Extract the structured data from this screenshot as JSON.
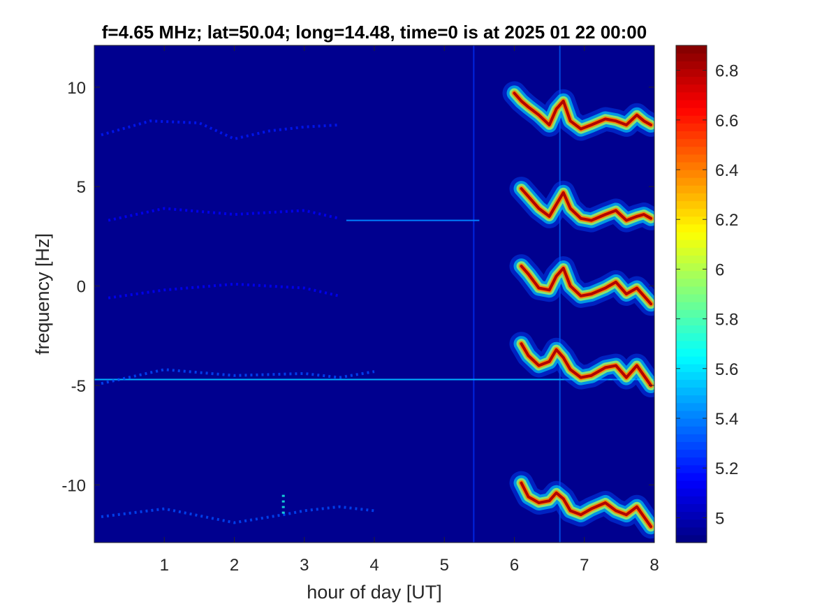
{
  "chart_data": {
    "type": "heatmap",
    "title": "f=4.65 MHz;  lat=50.04; long=14.48, time=0 is at 2025 01 22 00:00",
    "xlabel": "hour of day [UT]",
    "ylabel": "frequency [Hz]",
    "xlim": [
      0,
      8
    ],
    "ylim": [
      -12.9,
      12.1
    ],
    "x_ticks": [
      1,
      2,
      3,
      4,
      5,
      6,
      7,
      8
    ],
    "y_ticks": [
      -10,
      -5,
      0,
      5,
      10
    ],
    "colormap": "jet",
    "color_range": [
      4.9,
      6.9
    ],
    "colorbar_ticks": [
      5,
      5.2,
      5.4,
      5.6,
      5.8,
      6,
      6.2,
      6.4,
      6.6,
      6.8
    ],
    "background_value": 4.95,
    "traces": [
      {
        "x": [
          6.0,
          6.1,
          6.2,
          6.35,
          6.5,
          6.6,
          6.7,
          6.8,
          6.95,
          7.1,
          7.3,
          7.45,
          7.6,
          7.75,
          7.85,
          7.95
        ],
        "y": [
          9.7,
          9.3,
          9.0,
          8.6,
          8.1,
          8.9,
          9.3,
          8.3,
          7.9,
          8.1,
          8.4,
          8.3,
          8.1,
          8.6,
          8.3,
          8.1
        ],
        "peak": 6.8
      },
      {
        "x": [
          6.1,
          6.2,
          6.35,
          6.5,
          6.6,
          6.7,
          6.8,
          6.95,
          7.1,
          7.3,
          7.45,
          7.6,
          7.75,
          7.85,
          7.95
        ],
        "y": [
          4.9,
          4.5,
          3.9,
          3.5,
          4.1,
          4.7,
          3.9,
          3.4,
          3.3,
          3.6,
          3.8,
          3.3,
          3.5,
          3.6,
          3.4
        ],
        "peak": 6.9
      },
      {
        "x": [
          6.1,
          6.2,
          6.35,
          6.5,
          6.6,
          6.7,
          6.8,
          6.95,
          7.1,
          7.3,
          7.45,
          7.6,
          7.75,
          7.85,
          7.95
        ],
        "y": [
          1.0,
          0.6,
          -0.1,
          -0.2,
          0.5,
          0.9,
          0.0,
          -0.5,
          -0.4,
          -0.1,
          0.2,
          -0.4,
          -0.1,
          -0.5,
          -0.9
        ],
        "peak": 6.9
      },
      {
        "x": [
          6.1,
          6.2,
          6.35,
          6.5,
          6.6,
          6.7,
          6.8,
          6.95,
          7.1,
          7.3,
          7.45,
          7.6,
          7.75,
          7.85,
          7.95
        ],
        "y": [
          -2.9,
          -3.5,
          -4.0,
          -3.8,
          -3.2,
          -3.6,
          -4.2,
          -4.6,
          -4.5,
          -4.1,
          -4.0,
          -4.6,
          -4.0,
          -4.5,
          -5.0
        ],
        "peak": 6.9
      },
      {
        "x": [
          6.1,
          6.2,
          6.35,
          6.5,
          6.6,
          6.7,
          6.8,
          6.95,
          7.1,
          7.3,
          7.45,
          7.6,
          7.75,
          7.85,
          7.95
        ],
        "y": [
          -9.9,
          -10.6,
          -10.9,
          -10.8,
          -10.4,
          -10.7,
          -11.3,
          -11.5,
          -11.2,
          -10.9,
          -11.3,
          -11.5,
          -11.1,
          -11.6,
          -12.1
        ],
        "peak": 6.9
      }
    ],
    "faint_features": [
      {
        "x": [
          0.1,
          0.8,
          1.5,
          2.0,
          2.5,
          3.0,
          3.5
        ],
        "y": [
          7.6,
          8.3,
          8.2,
          7.4,
          7.8,
          8.0,
          8.1
        ],
        "value": 5.2
      },
      {
        "x": [
          0.2,
          1.0,
          2.0,
          3.0,
          3.5
        ],
        "y": [
          3.3,
          3.9,
          3.6,
          3.8,
          3.4
        ],
        "value": 5.15
      },
      {
        "x": [
          0.2,
          1.0,
          2.0,
          3.0,
          3.5
        ],
        "y": [
          -0.6,
          -0.2,
          0.1,
          -0.1,
          -0.5
        ],
        "value": 5.15
      },
      {
        "x": [
          0.1,
          1.0,
          2.0,
          3.0,
          3.5,
          4.0
        ],
        "y": [
          -4.9,
          -4.2,
          -4.5,
          -4.4,
          -4.6,
          -4.3
        ],
        "value": 5.3
      },
      {
        "x": [
          0.1,
          1.0,
          2.0,
          2.7,
          3.0,
          3.5,
          4.0
        ],
        "y": [
          -11.6,
          -11.2,
          -11.9,
          -11.5,
          -11.3,
          -11.1,
          -11.3
        ],
        "value": 5.3
      },
      {
        "x": [
          2.7,
          2.7,
          2.7,
          2.7
        ],
        "y": [
          -10.5,
          -10.9,
          -11.2,
          -11.5
        ],
        "value": 5.7
      }
    ],
    "horizontal_lines": [
      {
        "y": -4.7,
        "x_range": [
          0,
          8
        ],
        "value": 5.5
      },
      {
        "y": 3.3,
        "x_range": [
          3.6,
          5.5
        ],
        "value": 5.4
      }
    ],
    "vertical_lines": [
      {
        "x": 5.42,
        "value": 5.25
      },
      {
        "x": 6.65,
        "value": 5.35
      }
    ]
  }
}
